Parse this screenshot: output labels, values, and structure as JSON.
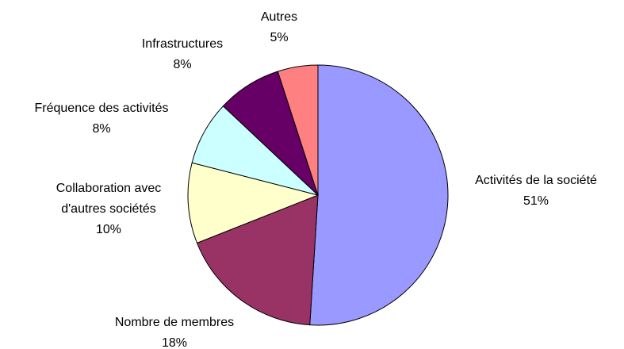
{
  "chart_data": {
    "type": "pie",
    "categories": [
      "Activités de la société",
      "Nombre de membres",
      "Collaboration avec d'autres sociétés",
      "Fréquence des activités",
      "Infrastructures",
      "Autres"
    ],
    "values": [
      51,
      18,
      10,
      8,
      8,
      5
    ],
    "value_labels": [
      "51%",
      "18%",
      "10%",
      "8%",
      "8%",
      "5%"
    ],
    "colors": [
      "#9999ff",
      "#993366",
      "#ffffcc",
      "#ccffff",
      "#660066",
      "#ff8080"
    ]
  }
}
